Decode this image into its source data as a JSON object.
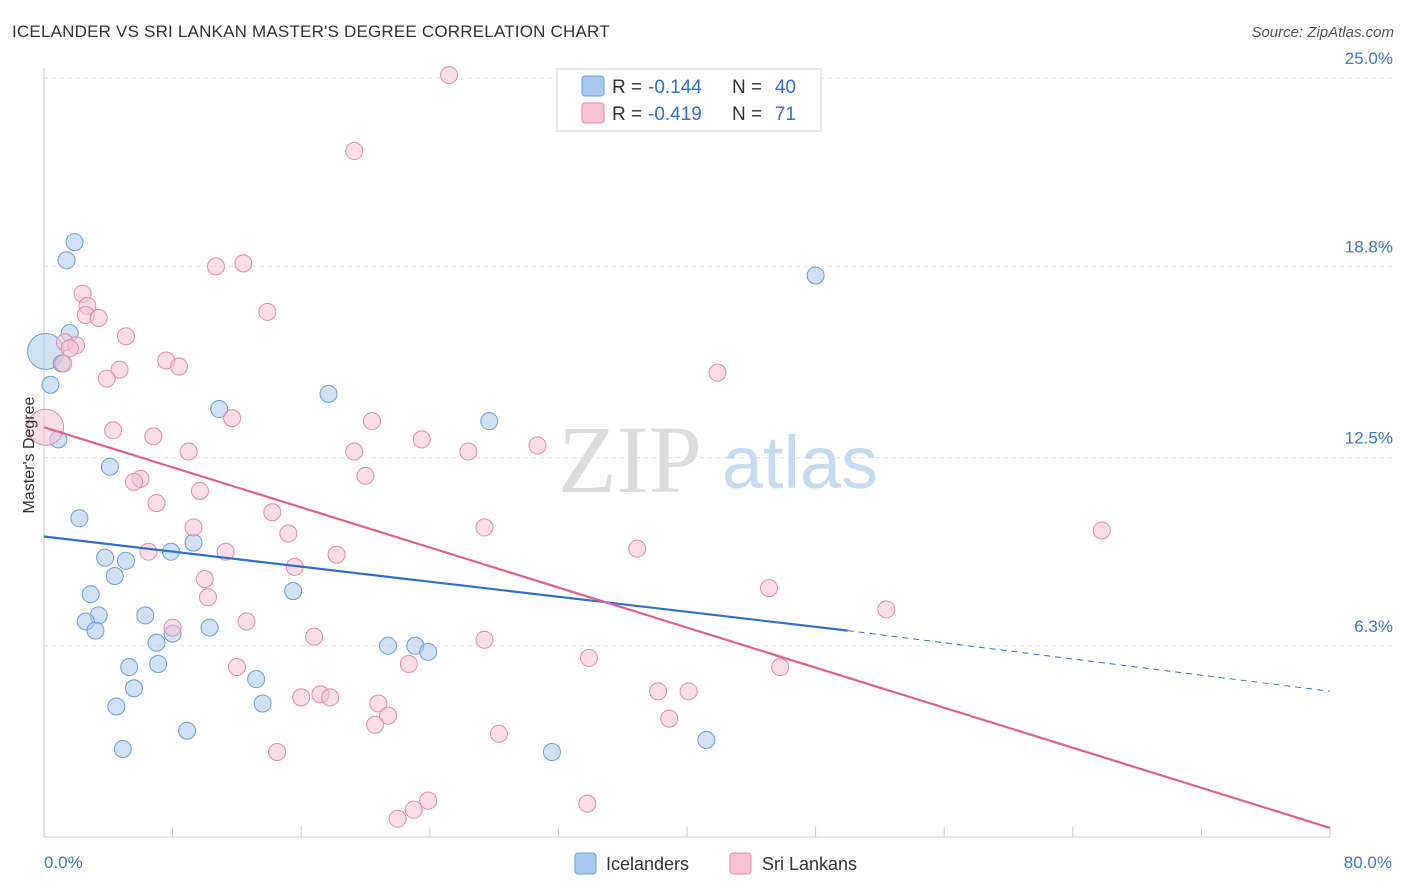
{
  "header": {
    "title": "ICELANDER VS SRI LANKAN MASTER'S DEGREE CORRELATION CHART",
    "source": "Source: ZipAtlas.com"
  },
  "watermark": {
    "zip": "ZIP",
    "atlas": "atlas"
  },
  "chart_data": {
    "type": "scatter",
    "xlabel": "",
    "ylabel": "Master's Degree",
    "xlim": [
      0,
      80
    ],
    "ylim": [
      0,
      25.6
    ],
    "x_tick_labels": {
      "min": "0.0%",
      "max": "80.0%"
    },
    "y_ticks": [
      {
        "value": 6.3,
        "label": "6.3%"
      },
      {
        "value": 12.5,
        "label": "12.5%"
      },
      {
        "value": 18.8,
        "label": "18.8%"
      },
      {
        "value": 25.0,
        "label": "25.0%"
      }
    ],
    "legend_stats": [
      {
        "r_label": "R =",
        "r_value": "-0.144",
        "n_label": "N =",
        "n_value": "40",
        "color": "#6fa8dc"
      },
      {
        "r_label": "R =",
        "r_value": "-0.419",
        "n_label": "N =",
        "n_value": "71",
        "color": "#f4a6c0"
      }
    ],
    "series": [
      {
        "name": "Icelanders",
        "color": "#a9c8ee",
        "stroke": "#6a9fd8",
        "trend": {
          "x0": 0,
          "y0": 9.9,
          "x1": 50,
          "y1": 6.8,
          "dash_to_x": 80,
          "dash_to_y": 4.8,
          "color": "#2f6fd0"
        },
        "points": [
          [
            1.9,
            19.6
          ],
          [
            1.4,
            19.0
          ],
          [
            48.0,
            18.5
          ],
          [
            1.6,
            16.6
          ],
          [
            0.1,
            16.0
          ],
          [
            1.1,
            15.6
          ],
          [
            0.4,
            14.9
          ],
          [
            17.7,
            14.6
          ],
          [
            10.9,
            14.1
          ],
          [
            27.7,
            13.7
          ],
          [
            0.9,
            13.1
          ],
          [
            4.1,
            12.2
          ],
          [
            2.2,
            10.5
          ],
          [
            9.3,
            9.7
          ],
          [
            7.9,
            9.4
          ],
          [
            3.8,
            9.2
          ],
          [
            5.1,
            9.1
          ],
          [
            4.4,
            8.6
          ],
          [
            15.5,
            8.1
          ],
          [
            2.9,
            8.0
          ],
          [
            6.3,
            7.3
          ],
          [
            3.4,
            7.3
          ],
          [
            2.6,
            7.1
          ],
          [
            10.3,
            6.9
          ],
          [
            3.2,
            6.8
          ],
          [
            8.0,
            6.7
          ],
          [
            7.0,
            6.4
          ],
          [
            21.4,
            6.3
          ],
          [
            23.1,
            6.3
          ],
          [
            23.9,
            6.1
          ],
          [
            7.1,
            5.7
          ],
          [
            5.3,
            5.6
          ],
          [
            13.2,
            5.2
          ],
          [
            5.6,
            4.9
          ],
          [
            13.6,
            4.4
          ],
          [
            4.5,
            4.3
          ],
          [
            8.9,
            3.5
          ],
          [
            41.2,
            3.2
          ],
          [
            4.9,
            2.9
          ],
          [
            31.6,
            2.8
          ]
        ]
      },
      {
        "name": "Sri Lankans",
        "color": "#f8c3d4",
        "stroke": "#e889a8",
        "trend": {
          "x0": 0,
          "y0": 13.5,
          "x1": 80,
          "y1": 0.3,
          "color": "#e06090"
        },
        "points": [
          [
            25.2,
            25.1
          ],
          [
            19.3,
            22.6
          ],
          [
            12.4,
            18.9
          ],
          [
            10.7,
            18.8
          ],
          [
            2.4,
            17.9
          ],
          [
            2.7,
            17.5
          ],
          [
            13.9,
            17.3
          ],
          [
            2.6,
            17.2
          ],
          [
            3.4,
            17.1
          ],
          [
            5.1,
            16.5
          ],
          [
            1.3,
            16.3
          ],
          [
            2.0,
            16.2
          ],
          [
            1.6,
            16.1
          ],
          [
            7.6,
            15.7
          ],
          [
            1.2,
            15.6
          ],
          [
            8.4,
            15.5
          ],
          [
            4.7,
            15.4
          ],
          [
            41.9,
            15.3
          ],
          [
            3.9,
            15.1
          ],
          [
            0.1,
            13.5
          ],
          [
            11.7,
            13.8
          ],
          [
            20.4,
            13.7
          ],
          [
            4.3,
            13.4
          ],
          [
            6.8,
            13.2
          ],
          [
            23.5,
            13.1
          ],
          [
            30.7,
            12.9
          ],
          [
            9.0,
            12.7
          ],
          [
            19.3,
            12.7
          ],
          [
            26.4,
            12.7
          ],
          [
            20.0,
            11.9
          ],
          [
            6.0,
            11.8
          ],
          [
            5.6,
            11.7
          ],
          [
            9.7,
            11.4
          ],
          [
            7.0,
            11.0
          ],
          [
            14.2,
            10.7
          ],
          [
            27.4,
            10.2
          ],
          [
            9.3,
            10.2
          ],
          [
            65.8,
            10.1
          ],
          [
            15.2,
            10.0
          ],
          [
            36.9,
            9.5
          ],
          [
            6.5,
            9.4
          ],
          [
            11.3,
            9.4
          ],
          [
            18.2,
            9.3
          ],
          [
            15.6,
            8.9
          ],
          [
            10.0,
            8.5
          ],
          [
            45.1,
            8.2
          ],
          [
            10.2,
            7.9
          ],
          [
            52.4,
            7.5
          ],
          [
            12.6,
            7.1
          ],
          [
            8.0,
            6.9
          ],
          [
            16.8,
            6.6
          ],
          [
            27.4,
            6.5
          ],
          [
            33.9,
            5.9
          ],
          [
            22.7,
            5.7
          ],
          [
            12.0,
            5.6
          ],
          [
            45.8,
            5.6
          ],
          [
            38.2,
            4.8
          ],
          [
            40.1,
            4.8
          ],
          [
            17.2,
            4.7
          ],
          [
            16.0,
            4.6
          ],
          [
            17.8,
            4.6
          ],
          [
            20.8,
            4.4
          ],
          [
            21.4,
            4.0
          ],
          [
            20.6,
            3.7
          ],
          [
            38.9,
            3.9
          ],
          [
            28.3,
            3.4
          ],
          [
            14.5,
            2.8
          ],
          [
            23.9,
            1.2
          ],
          [
            33.8,
            1.1
          ],
          [
            23.0,
            0.9
          ],
          [
            22.0,
            0.6
          ]
        ]
      }
    ]
  }
}
